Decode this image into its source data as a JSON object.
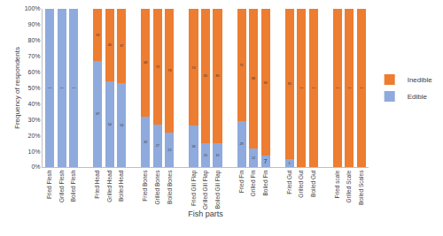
{
  "chart_data": {
    "type": "bar",
    "stacked": true,
    "data_labels": true,
    "grid": false,
    "legend": "right",
    "x_label": "Fish parts",
    "y_label": "Frequency of respondents",
    "categories": [
      "Fried Flesh",
      "Grilled Flesh",
      "Boiled Flesh",
      null,
      "Fried Head",
      "Grilled Head",
      "Boiled Head",
      null,
      "Fried Bones",
      "Grilled Bones",
      "Boiled Bones",
      null,
      "Fried Gill Flap",
      "Grilled Gill Flap",
      "Boiled Gill Flap",
      null,
      "Fried Fin",
      "Grilled Fin",
      "Boiled Fin",
      null,
      "Fried Gut",
      "Grilled Gut",
      "Boiled Gut",
      null,
      "Fried scale",
      "Grilled Scale",
      "Boiled Scales"
    ],
    "series": [
      {
        "name": "Edible",
        "color": "#8faadc",
        "values": [
          100,
          100,
          100,
          null,
          67,
          54,
          53,
          null,
          32,
          27,
          22,
          null,
          26,
          15,
          15,
          null,
          29,
          12,
          7,
          null,
          5,
          null,
          null,
          null,
          null,
          null,
          null
        ]
      },
      {
        "name": "Inedible",
        "color": "#ed7d31",
        "values": [
          null,
          null,
          null,
          null,
          33,
          46,
          47,
          null,
          68,
          73,
          78,
          null,
          74,
          85,
          85,
          null,
          71,
          88,
          93,
          null,
          95,
          100,
          100,
          null,
          100,
          100,
          100
        ]
      }
    ],
    "ylim": [
      0,
      100
    ],
    "yticks": [
      {
        "value": 0,
        "label": "0%"
      },
      {
        "value": 10,
        "label": "10%"
      },
      {
        "value": 20,
        "label": "20%"
      },
      {
        "value": 30,
        "label": "30%"
      },
      {
        "value": 40,
        "label": "40%"
      },
      {
        "value": 50,
        "label": "50%"
      },
      {
        "value": 60,
        "label": "60%"
      },
      {
        "value": 70,
        "label": "70%"
      },
      {
        "value": 80,
        "label": "80%"
      },
      {
        "value": 90,
        "label": "90%"
      },
      {
        "value": 100,
        "label": "100%"
      }
    ]
  }
}
